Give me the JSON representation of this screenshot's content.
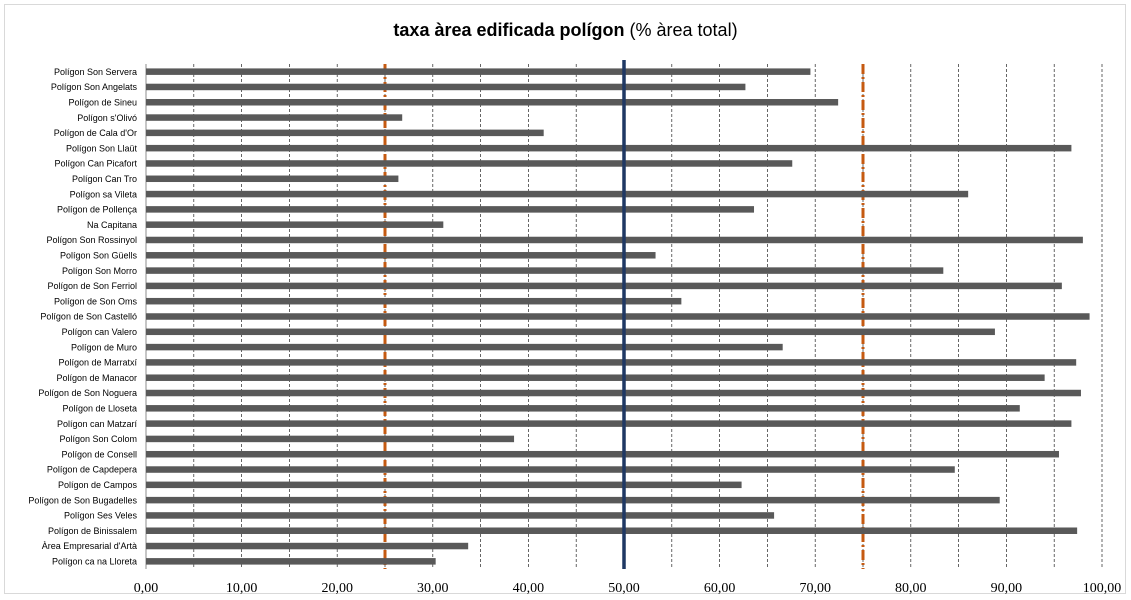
{
  "chart_data": {
    "type": "bar",
    "orientation": "horizontal",
    "title": "taxa àrea edificada polígon",
    "title_suffix": "(% àrea total)",
    "xlabel": "",
    "ylabel": "",
    "xlim": [
      0,
      100
    ],
    "x_ticks": [
      "0,00",
      "10,00",
      "20,00",
      "30,00",
      "40,00",
      "50,00",
      "60,00",
      "70,00",
      "80,00",
      "90,00",
      "100,00"
    ],
    "grid": "vertical dashed",
    "categories": [
      "Polígon Son Servera",
      "Polígon Son Angelats",
      "Polígon de Sineu",
      "Polígon s'Olivó",
      "Polígon de Cala d'Or",
      "Polígon Son Llaüt",
      "Polígon Can Picafort",
      "Polígon Can Tro",
      "Polígon sa Vileta",
      "Polígon de Pollença",
      "Na Capitana",
      "Polígon Son Rossinyol",
      "Polígon Son Güells",
      "Polígon Son Morro",
      "Polígon de Son Ferriol",
      "Polígon de Son Oms",
      "Polígon de Son Castelló",
      "Polígon can Valero",
      "Polígon de Muro",
      "Polígon de Marratxí",
      "Polígon de Manacor",
      "Polígon de Son Noguera",
      "Polígon de Lloseta",
      "Polígon can Matzarí",
      "Polígon Son Colom",
      "Polígon de Consell",
      "Polígon de Capdepera",
      "Polígon de Campos",
      "Polígon de Son Bugadelles",
      "Polígon Ses Veles",
      "Polígon de Binissalem",
      "Àrea Empresarial d'Artà",
      "Polígon ca na Lloreta"
    ],
    "values": [
      69.5,
      62.7,
      72.4,
      26.8,
      41.6,
      96.8,
      67.6,
      26.4,
      86.0,
      63.6,
      31.1,
      98.0,
      53.3,
      83.4,
      95.8,
      56.0,
      98.7,
      88.8,
      66.6,
      97.3,
      94.0,
      97.8,
      91.4,
      96.8,
      38.5,
      95.5,
      84.6,
      62.3,
      89.3,
      65.7,
      97.4,
      33.7,
      30.3
    ],
    "reference_lines": [
      {
        "value": 25,
        "style": "dash-dot",
        "color": "#c55a11"
      },
      {
        "value": 50,
        "style": "solid",
        "color": "#1f3864"
      },
      {
        "value": 75,
        "style": "dash-dot",
        "color": "#c55a11"
      }
    ],
    "bar_color": "#595959"
  }
}
